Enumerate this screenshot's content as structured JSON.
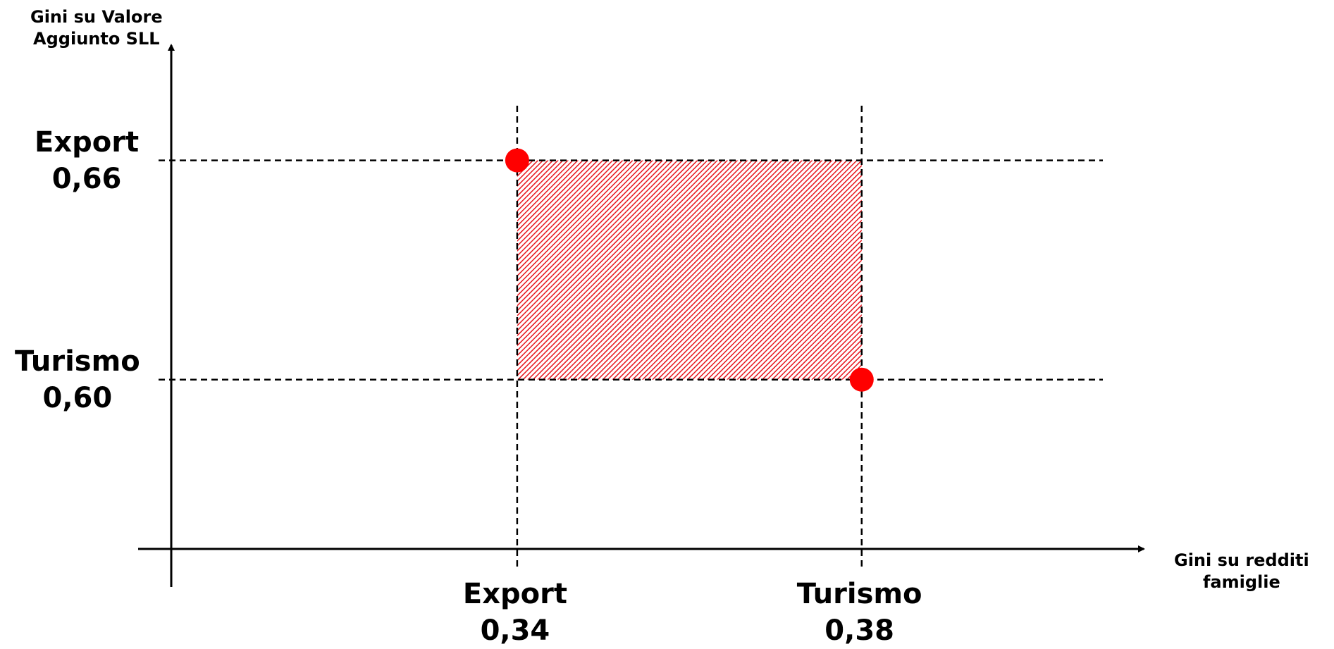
{
  "chart_data": {
    "type": "scatter",
    "ylabel": "Gini su Valore Aggiunto SLL",
    "ylabel_lines": [
      "Gini su Valore",
      "Aggiunto SLL"
    ],
    "xlabel": "Gini su redditi famiglie",
    "xlabel_lines": [
      "Gini su redditi",
      "famiglie"
    ],
    "xlim": [
      0.3,
      0.4125
    ],
    "ylim": [
      0.5525,
      0.69
    ],
    "grid": false,
    "x_ticks": [
      {
        "name": "Export",
        "value": 0.34,
        "label": "0,34"
      },
      {
        "name": "Turismo",
        "value": 0.38,
        "label": "0,38"
      }
    ],
    "y_ticks": [
      {
        "name": "Export",
        "value": 0.66,
        "label": "0,66"
      },
      {
        "name": "Turismo",
        "value": 0.6,
        "label": "0,60"
      }
    ],
    "points": [
      {
        "x": 0.34,
        "y": 0.66
      },
      {
        "x": 0.38,
        "y": 0.6
      }
    ],
    "shaded_region": {
      "x": [
        0.34,
        0.38
      ],
      "y": [
        0.6,
        0.66
      ]
    },
    "colors": {
      "point": "#ff0000",
      "hatch": "#e8141c",
      "line": "#000000"
    }
  }
}
